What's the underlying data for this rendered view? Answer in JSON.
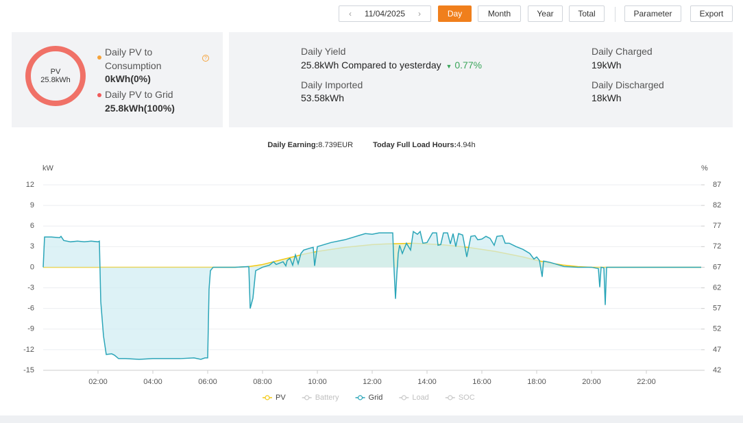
{
  "toolbar": {
    "date": "11/04/2025",
    "periods": [
      "Day",
      "Month",
      "Year",
      "Total"
    ],
    "actions": [
      "Parameter",
      "Export"
    ]
  },
  "summary": {
    "ring_label": "PV",
    "ring_value": "25.8kWh",
    "items": [
      {
        "label": "Daily PV to Consumption",
        "value": "0kWh(0%)"
      },
      {
        "label": "Daily PV to Grid",
        "value": "25.8kWh(100%)"
      }
    ]
  },
  "stats": [
    {
      "label": "Daily Yield",
      "value": "25.8kWh Compared to yesterday",
      "change": "0.77%"
    },
    {
      "label": "Daily Imported",
      "value": "53.58kWh"
    },
    {
      "label": "Daily Charged",
      "value": "19kWh"
    },
    {
      "label": "Daily Discharged",
      "value": "18kWh"
    }
  ],
  "earnings": {
    "earning_label": "Daily Earning:",
    "earning_value": "8.739EUR",
    "hours_label": "Today Full Load Hours:",
    "hours_value": "4.94h"
  },
  "chart_data": {
    "type": "area",
    "y_label": "kW",
    "y2_label": "%",
    "xlim": [
      0,
      24
    ],
    "xticks": [
      {
        "value": 2,
        "label": "02:00"
      },
      {
        "value": 4,
        "label": "04:00"
      },
      {
        "value": 6,
        "label": "06:00"
      },
      {
        "value": 8,
        "label": "08:00"
      },
      {
        "value": 10,
        "label": "10:00"
      },
      {
        "value": 12,
        "label": "12:00"
      },
      {
        "value": 14,
        "label": "14:00"
      },
      {
        "value": 16,
        "label": "16:00"
      },
      {
        "value": 18,
        "label": "18:00"
      },
      {
        "value": 20,
        "label": "20:00"
      },
      {
        "value": 22,
        "label": "22:00"
      }
    ],
    "ylim": [
      -15,
      12
    ],
    "yticks": [
      -15,
      -12,
      -9,
      -6,
      -3,
      0,
      3,
      6,
      9,
      12
    ],
    "y2lim": [
      42,
      87
    ],
    "y2ticks": [
      42,
      47,
      52,
      57,
      62,
      67,
      72,
      77,
      82,
      87
    ],
    "grid": true,
    "series": [
      {
        "name": "PV",
        "color": "#f2c811",
        "fill_color": "#d9e9c6",
        "visible": true,
        "x": [
          0,
          7,
          7.5,
          8,
          8.5,
          9,
          9.5,
          10,
          10.5,
          11,
          11.5,
          12,
          12.5,
          13,
          13.5,
          14,
          14.5,
          15,
          15.5,
          16,
          16.5,
          17,
          17.5,
          18,
          18.5,
          19,
          19.5,
          20,
          24
        ],
        "values": [
          0,
          0,
          0.1,
          0.4,
          0.9,
          1.4,
          1.9,
          2.3,
          2.6,
          2.9,
          3.1,
          3.3,
          3.4,
          3.45,
          3.5,
          3.4,
          3.3,
          3.1,
          2.9,
          2.6,
          2.3,
          1.9,
          1.5,
          1.0,
          0.6,
          0.3,
          0.1,
          0,
          0
        ]
      },
      {
        "name": "Battery",
        "color": "#c8c8c8",
        "visible": false,
        "x": [],
        "values": []
      },
      {
        "name": "Grid",
        "color": "#2aa5b8",
        "fill_color": "#cfecf2",
        "visible": true,
        "x": [
          0,
          0.05,
          0.3,
          0.6,
          0.65,
          0.75,
          1.0,
          1.25,
          1.5,
          1.75,
          2.0,
          2.05,
          2.1,
          2.2,
          2.3,
          2.5,
          2.6,
          2.75,
          3,
          3.5,
          4,
          4.5,
          5,
          5.5,
          5.75,
          5.9,
          6.0,
          6.05,
          6.1,
          6.2,
          7.0,
          7.5,
          7.55,
          7.65,
          7.75,
          8,
          8.25,
          8.4,
          8.5,
          8.75,
          8.85,
          8.9,
          9,
          9.1,
          9.2,
          9.3,
          9.4,
          9.5,
          9.75,
          9.85,
          9.9,
          10.0,
          10.25,
          10.5,
          11,
          11.25,
          11.5,
          11.75,
          12,
          12.25,
          12.5,
          12.75,
          12.8,
          12.85,
          12.9,
          12.95,
          13.0,
          13.1,
          13.25,
          13.4,
          13.5,
          13.65,
          13.75,
          13.85,
          14.0,
          14.2,
          14.35,
          14.4,
          14.5,
          14.6,
          14.75,
          14.85,
          14.95,
          15.05,
          15.15,
          15.3,
          15.45,
          15.6,
          15.75,
          15.85,
          16,
          16.15,
          16.3,
          16.45,
          16.55,
          16.75,
          16.85,
          17.0,
          17.25,
          17.5,
          17.75,
          17.9,
          18.0,
          18.1,
          18.2,
          18.25,
          18.5,
          18.75,
          19,
          19.5,
          20,
          20.25,
          20.3,
          20.35,
          20.45,
          20.5,
          20.55,
          24
        ],
        "values": [
          0,
          4.4,
          4.4,
          4.3,
          4.5,
          3.9,
          3.7,
          3.8,
          3.7,
          3.8,
          3.7,
          3.8,
          -5,
          -10,
          -12.7,
          -12.6,
          -12.8,
          -13.3,
          -13.3,
          -13.4,
          -13.3,
          -13.3,
          -13.3,
          -13.2,
          -13.4,
          -13.2,
          -13.2,
          -3.2,
          -0.5,
          0,
          0,
          0.1,
          -6,
          -4.5,
          -0.5,
          0,
          0.3,
          0.8,
          0.4,
          0.8,
          0.2,
          1.0,
          1.3,
          0.3,
          1.8,
          0.5,
          2.0,
          2.5,
          2.8,
          2.9,
          0.2,
          3.0,
          3.3,
          3.6,
          4.0,
          4.3,
          4.6,
          4.9,
          4.8,
          5.0,
          5.0,
          5.0,
          -0.5,
          -4.6,
          -1.0,
          2.0,
          3.2,
          2.0,
          3.5,
          2.5,
          5.2,
          4.8,
          5.2,
          3.5,
          3.6,
          5.0,
          5.0,
          3.2,
          3.3,
          5.0,
          5.0,
          3.4,
          4.9,
          3.0,
          4.9,
          4.7,
          1.5,
          4.5,
          4.6,
          4.0,
          4.1,
          4.5,
          4.2,
          3.2,
          4.5,
          4.6,
          3.5,
          3.5,
          3.0,
          2.6,
          2.0,
          1.2,
          1.5,
          1.0,
          -1.4,
          0.9,
          0.7,
          0.4,
          0.1,
          0,
          0,
          -0.2,
          -2.9,
          0,
          -0.1,
          -5.5,
          0,
          0
        ]
      },
      {
        "name": "Load",
        "color": "#c8c8c8",
        "visible": false,
        "x": [],
        "values": []
      },
      {
        "name": "SOC",
        "color": "#c8c8c8",
        "visible": false,
        "axis": "y2",
        "x": [],
        "values": []
      }
    ]
  }
}
